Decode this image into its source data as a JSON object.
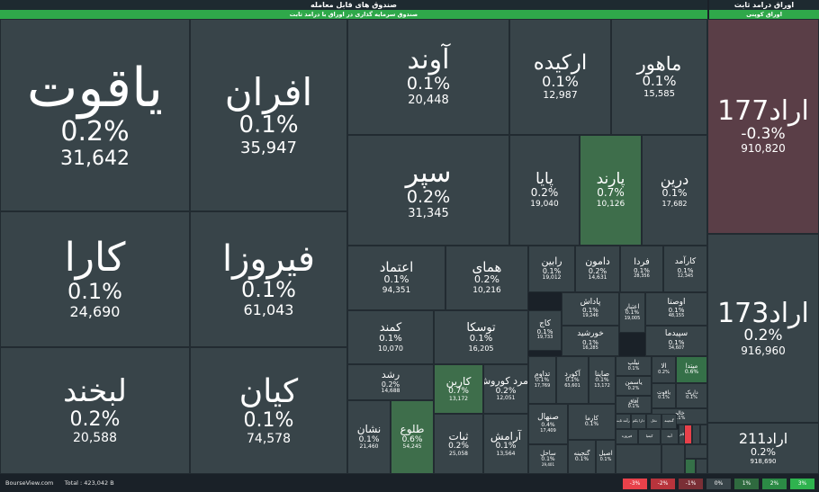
{
  "header": {
    "funds_title": "صندوق های قابل معامله",
    "funds_subtitle": "صندوق سرمایه گذاری در اوراق با درامد ثابت",
    "bonds_title": "اوراق درامد ثابت",
    "bonds_subtitle": "اوراق کوپنی"
  },
  "colors": {
    "neutral": "#384449",
    "up_light": "#3e6e4b",
    "up_strong": "#357048",
    "down_light": "#5a3e47",
    "down_strong": "#e8414a"
  },
  "tiles": [
    {
      "id": "yaghout",
      "name": "یاقوت",
      "pct": "0.2%",
      "val": "31,642"
    },
    {
      "id": "afran",
      "name": "افران",
      "pct": "0.1%",
      "val": "35,947"
    },
    {
      "id": "avand",
      "name": "آوند",
      "pct": "0.1%",
      "val": "20,448"
    },
    {
      "id": "orkideh",
      "name": "ارکیده",
      "pct": "0.1%",
      "val": "12,987"
    },
    {
      "id": "mahoor",
      "name": "ماهور",
      "pct": "0.1%",
      "val": "15,585"
    },
    {
      "id": "separ",
      "name": "سپر",
      "pct": "0.2%",
      "val": "31,345"
    },
    {
      "id": "paya",
      "name": "پایا",
      "pct": "0.2%",
      "val": "19,040"
    },
    {
      "id": "parand",
      "name": "پارند",
      "pct": "0.7%",
      "val": "10,126"
    },
    {
      "id": "dorrin",
      "name": "درین",
      "pct": "0.1%",
      "val": "17,682"
    },
    {
      "id": "kara",
      "name": "کارا",
      "pct": "0.1%",
      "val": "24,690"
    },
    {
      "id": "firooza",
      "name": "فیروزا",
      "pct": "0.1%",
      "val": "61,043"
    },
    {
      "id": "etemad",
      "name": "اعتماد",
      "pct": "0.1%",
      "val": "94,351"
    },
    {
      "id": "homay",
      "name": "همای",
      "pct": "0.2%",
      "val": "10,216"
    },
    {
      "id": "rabin",
      "name": "رابین",
      "pct": "0.1%",
      "val": "19,012"
    },
    {
      "id": "damoon",
      "name": "دامون",
      "pct": "0.2%",
      "val": "14,631"
    },
    {
      "id": "farda",
      "name": "فردا",
      "pct": "0.1%",
      "val": "28,356"
    },
    {
      "id": "karamad",
      "name": "کارآمد",
      "pct": "0.1%",
      "val": "12,345"
    },
    {
      "id": "padash",
      "name": "پاداش",
      "pct": "0.1%",
      "val": "19,246"
    },
    {
      "id": "etebar",
      "name": "اعتبار",
      "pct": "0.1%",
      "val": "19,005"
    },
    {
      "id": "oosta",
      "name": "اوصتا",
      "pct": "0.1%",
      "val": "48,155"
    },
    {
      "id": "kaj",
      "name": "کاج",
      "pct": "0.1%",
      "val": "19,733"
    },
    {
      "id": "khorshid",
      "name": "خورشید",
      "pct": "0.1%",
      "val": "16,285"
    },
    {
      "id": "sepidma",
      "name": "سپیدما",
      "pct": "0.1%",
      "val": "34,607"
    },
    {
      "id": "kamand",
      "name": "کمند",
      "pct": "0.1%",
      "val": "10,070"
    },
    {
      "id": "tooska",
      "name": "توسکا",
      "pct": "0.1%",
      "val": "16,205"
    },
    {
      "id": "labkhand",
      "name": "لبخند",
      "pct": "0.2%",
      "val": "20,588"
    },
    {
      "id": "kian",
      "name": "کیان",
      "pct": "0.1%",
      "val": "74,578"
    },
    {
      "id": "roshd",
      "name": "رشد",
      "pct": "0.2%",
      "val": "14,688"
    },
    {
      "id": "karin",
      "name": "کارین",
      "pct": "0.7%",
      "val": "13,172"
    },
    {
      "id": "zomorod",
      "name": "زمرد کوروش",
      "pct": "0.2%",
      "val": "12,051"
    },
    {
      "id": "tadavom",
      "name": "تداوم",
      "pct": "0.1%",
      "val": "17,769"
    },
    {
      "id": "akord",
      "name": "آکورد",
      "pct": "0.1%",
      "val": "63,601"
    },
    {
      "id": "sayna",
      "name": "صاینا",
      "pct": "0.1%",
      "val": "13,172"
    },
    {
      "id": "yasaman",
      "name": "یاسمن",
      "pct": "0.2%",
      "val": ""
    },
    {
      "id": "nilp",
      "name": "نیلپ",
      "pct": "0.1%",
      "val": ""
    },
    {
      "id": "ala",
      "name": "الا",
      "pct": "0.2%",
      "val": ""
    },
    {
      "id": "mitadal",
      "name": "میتدا",
      "pct": "0.6%",
      "val": ""
    },
    {
      "id": "yaghut2",
      "name": "یاقوت",
      "pct": "0.1%",
      "val": ""
    },
    {
      "id": "aflak",
      "name": "آفاق",
      "pct": "0.1%",
      "val": ""
    },
    {
      "id": "dariq",
      "name": "داریک",
      "pct": "0.1%",
      "val": ""
    },
    {
      "id": "khalim",
      "name": "خالم",
      "pct": "0.1%",
      "val": ""
    },
    {
      "id": "neshan",
      "name": "نشان",
      "pct": "0.1%",
      "val": "21,460"
    },
    {
      "id": "toloo",
      "name": "طلوع",
      "pct": "0.6%",
      "val": "54,245"
    },
    {
      "id": "sabet",
      "name": "ثبات",
      "pct": "0.2%",
      "val": "25,058"
    },
    {
      "id": "aramesh",
      "name": "آرامش",
      "pct": "0.1%",
      "val": "13,564"
    },
    {
      "id": "senhal",
      "name": "صنهال",
      "pct": "0.4%",
      "val": "17,409"
    },
    {
      "id": "karma",
      "name": "کارما",
      "pct": "0.1%",
      "val": ""
    },
    {
      "id": "sahel",
      "name": "ساحل",
      "pct": "0.1%",
      "val": "29,401"
    },
    {
      "id": "ganjineh",
      "name": "گنجینه",
      "pct": "0.1%",
      "val": ""
    },
    {
      "id": "asil",
      "name": "اصیل",
      "pct": "0.1%",
      "val": ""
    },
    {
      "id": "arad177",
      "name": "اراد177",
      "pct": "-0.3%",
      "val": "910,820"
    },
    {
      "id": "arad173",
      "name": "اراد173",
      "pct": "0.2%",
      "val": "916,960"
    },
    {
      "id": "arad211",
      "name": "اراد211",
      "pct": "0.2%",
      "val": "918,690"
    }
  ],
  "small_tiles": [
    "درآمد ثابت",
    "دارا یکم",
    "نخل",
    "گنجینه",
    "فیروزه",
    "کیمیا",
    "آتیه",
    "سلام"
  ],
  "footer": {
    "site": "BourseView.com",
    "total": "Total : 423,042 B"
  },
  "legend": [
    "-3%",
    "-2%",
    "-1%",
    "0%",
    "1%",
    "2%",
    "3%"
  ]
}
